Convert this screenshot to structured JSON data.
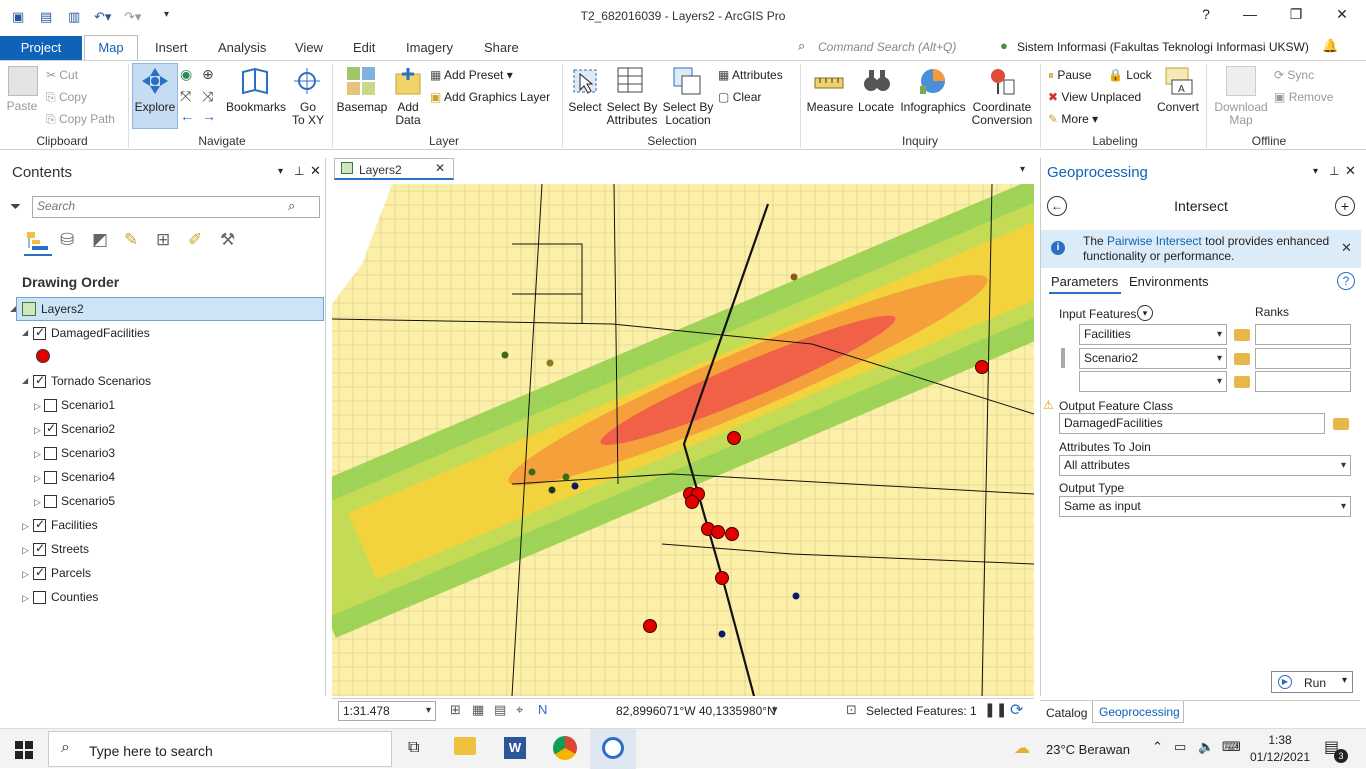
{
  "window": {
    "title": "T2_682016039 - Layers2 - ArcGIS Pro",
    "help": "?",
    "minimize": "—",
    "restore": "❐",
    "close": "✕"
  },
  "tabs": [
    "Project",
    "Map",
    "Insert",
    "Analysis",
    "View",
    "Edit",
    "Imagery",
    "Share"
  ],
  "command_search": {
    "placeholder": "Command Search (Alt+Q)"
  },
  "account": "Sistem Informasi (Fakultas Teknologi Informasi UKSW)",
  "ribbon": {
    "clipboard": {
      "label": "Clipboard",
      "paste": "Paste",
      "cut": "Cut",
      "copy": "Copy",
      "copy_path": "Copy Path"
    },
    "navigate": {
      "label": "Navigate",
      "explore": "Explore",
      "bookmarks": "Bookmarks",
      "goto_line1": "Go",
      "goto_line2": "To XY"
    },
    "layer": {
      "label": "Layer",
      "basemap": "Basemap",
      "add_data_line1": "Add",
      "add_data_line2": "Data",
      "add_preset": "Add Preset",
      "add_graphics_layer": "Add Graphics Layer"
    },
    "selection": {
      "label": "Selection",
      "select": "Select",
      "select_by_attr_1": "Select By",
      "select_by_attr_2": "Attributes",
      "select_by_loc_1": "Select By",
      "select_by_loc_2": "Location",
      "attributes": "Attributes",
      "clear": "Clear"
    },
    "inquiry": {
      "label": "Inquiry",
      "measure": "Measure",
      "locate": "Locate",
      "infographics": "Infographics",
      "coord_1": "Coordinate",
      "coord_2": "Conversion"
    },
    "labeling": {
      "label": "Labeling",
      "pause": "Pause",
      "lock": "Lock",
      "view_unplaced": "View Unplaced",
      "more": "More",
      "convert": "Convert"
    },
    "offline": {
      "label": "Offline",
      "download_1": "Download",
      "download_2": "Map",
      "sync": "Sync",
      "remove": "Remove"
    }
  },
  "contents": {
    "title": "Contents",
    "search_placeholder": "Search",
    "drawing_order": "Drawing Order",
    "map_name": "Layers2",
    "layers": {
      "damaged": "DamagedFacilities",
      "tornado": "Tornado Scenarios",
      "s1": "Scenario1",
      "s2": "Scenario2",
      "s3": "Scenario3",
      "s4": "Scenario4",
      "s5": "Scenario5",
      "facilities": "Facilities",
      "streets": "Streets",
      "parcels": "Parcels",
      "counties": "Counties"
    }
  },
  "map": {
    "tab": "Layers2",
    "scale": "1:31.478",
    "coordinates": "82,8996071°W 40,1335980°N",
    "selected": "Selected Features: 1",
    "colors": {
      "parcel": "#fcefa8",
      "green": "#8fcf4a",
      "yellow": "#f7d13c",
      "orange": "#f59a3b",
      "red": "#ef5a4a",
      "facility": "#e30000"
    }
  },
  "geoprocessing": {
    "title": "Geoprocessing",
    "tool": "Intersect",
    "info_pre": "The",
    "info_link": "Pairwise Intersect",
    "info_post": "tool provides enhanced functionality or performance.",
    "tab_params": "Parameters",
    "tab_env": "Environments",
    "input_features": "Input Features",
    "ranks": "Ranks",
    "input1": "Facilities",
    "input2": "Scenario2",
    "input3": "",
    "output_label": "Output Feature Class",
    "output_value": "DamagedFacilities",
    "attrs_label": "Attributes To Join",
    "attrs_value": "All attributes",
    "otype_label": "Output Type",
    "otype_value": "Same as input",
    "run": "Run",
    "bottom_tab_catalog": "Catalog",
    "bottom_tab_gp": "Geoprocessing"
  },
  "taskbar": {
    "search_placeholder": "Type here to search",
    "weather": "23°C  Berawan",
    "time": "1:38",
    "date": "01/12/2021",
    "notif_count": "3"
  }
}
